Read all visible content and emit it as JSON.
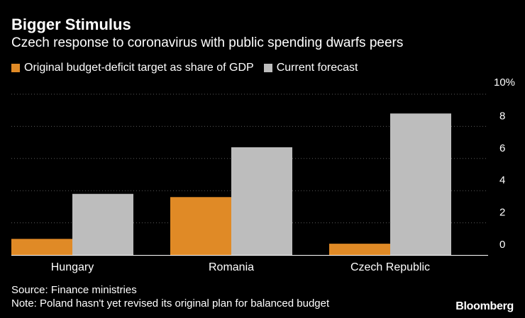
{
  "chart_data": {
    "type": "bar",
    "title": "Bigger Stimulus",
    "subtitle": "Czech response to coronavirus with public spending dwarfs peers",
    "categories": [
      "Hungary",
      "Romania",
      "Czech Republic"
    ],
    "series": [
      {
        "name": "Original budget-deficit target as share of GDP",
        "color": "#e08a26",
        "values": [
          1.0,
          3.6,
          0.7
        ]
      },
      {
        "name": "Current forecast",
        "color": "#bdbdbd",
        "values": [
          3.8,
          6.7,
          8.8
        ]
      }
    ],
    "ylim": [
      0,
      10
    ],
    "yticks": [
      0,
      2,
      4,
      6,
      8,
      10
    ],
    "ytick_labels": [
      "0",
      "2",
      "4",
      "6",
      "8",
      "10%"
    ],
    "grid": true,
    "legend": "top-left",
    "source": "Source: Finance ministries",
    "note": "Note: Poland hasn't yet revised its original plan for balanced budget",
    "brand": "Bloomberg"
  }
}
